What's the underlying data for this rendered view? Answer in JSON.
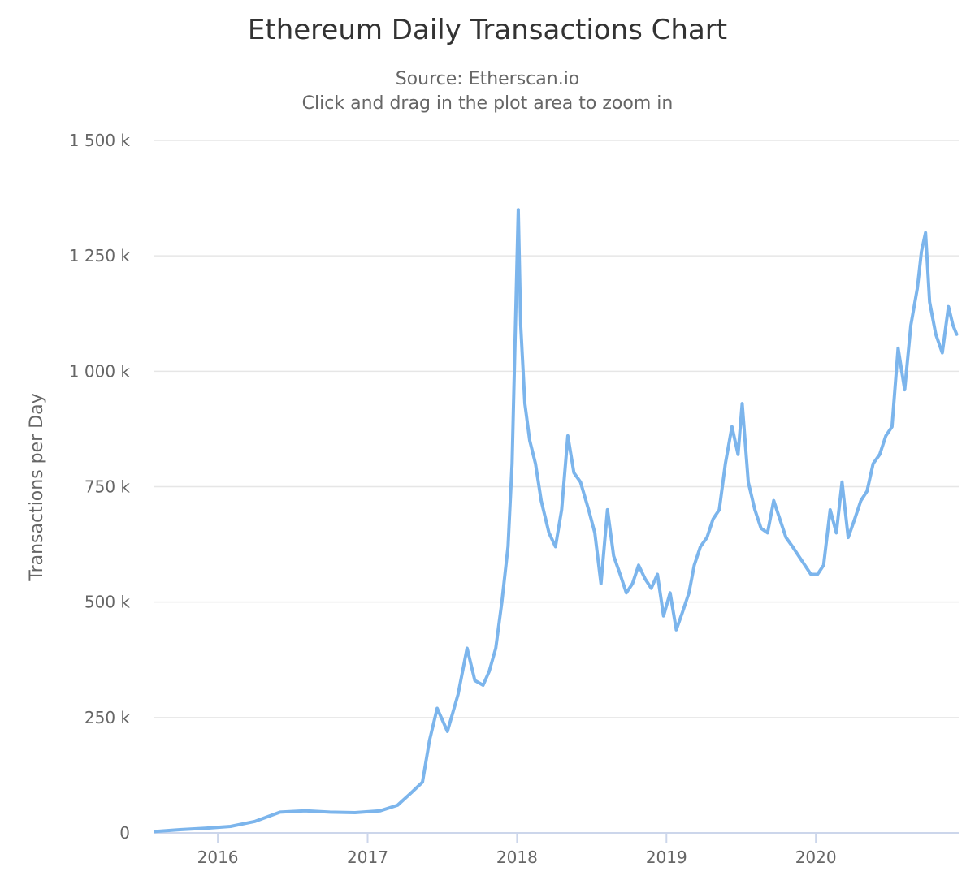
{
  "chart_data": {
    "type": "line",
    "title": "Ethereum Daily Transactions Chart",
    "subtitle_lines": [
      "Source: Etherscan.io",
      "Click and drag in the plot area to zoom in"
    ],
    "ylabel": "Transactions per Day",
    "xlabel": "",
    "y_ticks": [
      {
        "value": 0,
        "label": "0"
      },
      {
        "value": 250000,
        "label": "250 k"
      },
      {
        "value": 500000,
        "label": "500 k"
      },
      {
        "value": 750000,
        "label": "750 k"
      },
      {
        "value": 1000000,
        "label": "1 000 k"
      },
      {
        "value": 1250000,
        "label": "1 250 k"
      },
      {
        "value": 1500000,
        "label": "1 500 k"
      }
    ],
    "x_ticks": [
      {
        "value": "2016-01-01",
        "label": "2016"
      },
      {
        "value": "2017-01-01",
        "label": "2017"
      },
      {
        "value": "2018-01-01",
        "label": "2018"
      },
      {
        "value": "2019-01-01",
        "label": "2019"
      },
      {
        "value": "2020-01-01",
        "label": "2020"
      }
    ],
    "xlim": [
      "2015-07-30",
      "2020-12-15"
    ],
    "ylim": [
      0,
      1500000
    ],
    "grid": true,
    "series_color": "#7cb5ec",
    "series": [
      {
        "x": [
          "2015-08-01",
          "2015-10-01",
          "2015-12-01",
          "2016-02-01",
          "2016-04-01",
          "2016-06-01",
          "2016-08-01",
          "2016-10-01",
          "2016-12-01",
          "2017-02-01",
          "2017-03-15",
          "2017-04-15",
          "2017-05-15",
          "2017-06-01",
          "2017-06-20",
          "2017-07-15",
          "2017-08-10",
          "2017-09-01",
          "2017-09-20",
          "2017-10-10",
          "2017-10-25",
          "2017-11-10",
          "2017-11-25",
          "2017-12-10",
          "2017-12-20",
          "2018-01-04",
          "2018-01-10",
          "2018-01-20",
          "2018-02-01",
          "2018-02-15",
          "2018-03-01",
          "2018-03-20",
          "2018-04-05",
          "2018-04-20",
          "2018-05-05",
          "2018-05-20",
          "2018-06-05",
          "2018-06-25",
          "2018-07-10",
          "2018-07-25",
          "2018-08-10",
          "2018-08-25",
          "2018-09-10",
          "2018-09-25",
          "2018-10-10",
          "2018-10-25",
          "2018-11-10",
          "2018-11-25",
          "2018-12-10",
          "2018-12-25",
          "2019-01-10",
          "2019-01-25",
          "2019-02-10",
          "2019-02-25",
          "2019-03-10",
          "2019-03-25",
          "2019-04-10",
          "2019-04-25",
          "2019-05-10",
          "2019-05-25",
          "2019-06-10",
          "2019-06-25",
          "2019-07-05",
          "2019-07-20",
          "2019-08-05",
          "2019-08-20",
          "2019-09-05",
          "2019-09-20",
          "2019-10-05",
          "2019-10-20",
          "2019-11-05",
          "2019-11-20",
          "2019-12-05",
          "2019-12-20",
          "2020-01-05",
          "2020-01-20",
          "2020-02-05",
          "2020-02-20",
          "2020-03-05",
          "2020-03-20",
          "2020-04-05",
          "2020-04-20",
          "2020-05-05",
          "2020-05-20",
          "2020-06-05",
          "2020-06-20",
          "2020-07-05",
          "2020-07-20",
          "2020-08-05",
          "2020-08-20",
          "2020-09-05",
          "2020-09-15",
          "2020-09-25",
          "2020-10-05",
          "2020-10-20",
          "2020-11-05",
          "2020-11-20",
          "2020-12-01",
          "2020-12-10"
        ],
        "values": [
          3000,
          7000,
          10000,
          14000,
          25000,
          45000,
          48000,
          45000,
          44000,
          48000,
          60000,
          85000,
          110000,
          200000,
          270000,
          220000,
          300000,
          400000,
          330000,
          320000,
          350000,
          400000,
          500000,
          620000,
          800000,
          1350000,
          1100000,
          930000,
          850000,
          800000,
          720000,
          650000,
          620000,
          700000,
          860000,
          780000,
          760000,
          700000,
          650000,
          540000,
          700000,
          600000,
          560000,
          520000,
          540000,
          580000,
          550000,
          530000,
          560000,
          470000,
          520000,
          440000,
          480000,
          520000,
          580000,
          620000,
          640000,
          680000,
          700000,
          800000,
          880000,
          820000,
          930000,
          760000,
          700000,
          660000,
          650000,
          720000,
          680000,
          640000,
          620000,
          600000,
          580000,
          560000,
          560000,
          580000,
          700000,
          650000,
          760000,
          640000,
          680000,
          720000,
          740000,
          800000,
          820000,
          860000,
          880000,
          1050000,
          960000,
          1100000,
          1180000,
          1260000,
          1300000,
          1150000,
          1080000,
          1040000,
          1140000,
          1100000,
          1080000
        ]
      }
    ]
  }
}
